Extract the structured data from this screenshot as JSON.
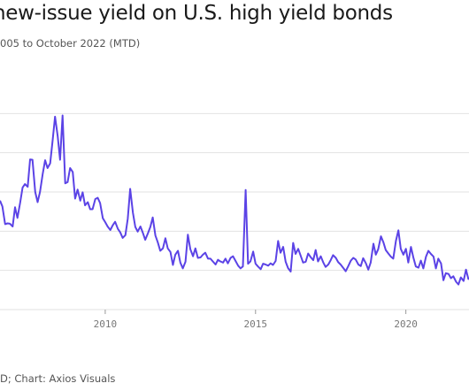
{
  "header": {
    "title": "new-issue yield on U.S. high yield bonds",
    "subtitle": "005 to October 2022 (MTD)"
  },
  "footer": {
    "source": "D; Chart: Axios Visuals"
  },
  "colors": {
    "line": "#5b43e6",
    "grid": "#e2e2e2",
    "axis_text": "#777777"
  },
  "chart_data": {
    "type": "line",
    "title": "new-issue yield on U.S. high yield bonds",
    "xlabel": "",
    "ylabel": "",
    "xlim": [
      2006.5,
      2022.1
    ],
    "ylim": [
      0,
      6
    ],
    "grid": true,
    "x_ticks": [
      {
        "value": 2010,
        "label": "2010"
      },
      {
        "value": 2015,
        "label": "2015"
      },
      {
        "value": 2020,
        "label": "2020"
      }
    ],
    "y_gridlines": [
      0,
      1,
      2,
      3,
      4,
      5
    ],
    "series": [
      {
        "values": [
          [
            2006.5,
            2.78
          ],
          [
            2006.58,
            2.63
          ],
          [
            2006.67,
            2.18
          ],
          [
            2006.75,
            2.2
          ],
          [
            2006.83,
            2.19
          ],
          [
            2006.92,
            2.12
          ],
          [
            2007.0,
            2.61
          ],
          [
            2007.08,
            2.34
          ],
          [
            2007.17,
            2.73
          ],
          [
            2007.25,
            3.11
          ],
          [
            2007.33,
            3.2
          ],
          [
            2007.42,
            3.13
          ],
          [
            2007.5,
            3.83
          ],
          [
            2007.58,
            3.82
          ],
          [
            2007.67,
            3.0
          ],
          [
            2007.75,
            2.74
          ],
          [
            2007.83,
            3.0
          ],
          [
            2007.92,
            3.45
          ],
          [
            2008.0,
            3.81
          ],
          [
            2008.08,
            3.61
          ],
          [
            2008.17,
            3.73
          ],
          [
            2008.25,
            4.32
          ],
          [
            2008.33,
            4.92
          ],
          [
            2008.42,
            4.42
          ],
          [
            2008.5,
            3.82
          ],
          [
            2008.58,
            4.95
          ],
          [
            2008.67,
            3.22
          ],
          [
            2008.75,
            3.25
          ],
          [
            2008.83,
            3.61
          ],
          [
            2008.92,
            3.51
          ],
          [
            2009.0,
            2.83
          ],
          [
            2009.08,
            3.06
          ],
          [
            2009.17,
            2.78
          ],
          [
            2009.25,
            2.99
          ],
          [
            2009.33,
            2.66
          ],
          [
            2009.42,
            2.74
          ],
          [
            2009.5,
            2.56
          ],
          [
            2009.58,
            2.56
          ],
          [
            2009.67,
            2.82
          ],
          [
            2009.75,
            2.85
          ],
          [
            2009.83,
            2.72
          ],
          [
            2009.92,
            2.33
          ],
          [
            2010.0,
            2.23
          ],
          [
            2010.08,
            2.12
          ],
          [
            2010.17,
            2.03
          ],
          [
            2010.25,
            2.15
          ],
          [
            2010.33,
            2.24
          ],
          [
            2010.42,
            2.06
          ],
          [
            2010.5,
            1.97
          ],
          [
            2010.58,
            1.83
          ],
          [
            2010.67,
            1.9
          ],
          [
            2010.75,
            2.32
          ],
          [
            2010.83,
            3.08
          ],
          [
            2010.92,
            2.47
          ],
          [
            2011.0,
            2.11
          ],
          [
            2011.08,
            1.99
          ],
          [
            2011.17,
            2.12
          ],
          [
            2011.25,
            1.96
          ],
          [
            2011.33,
            1.78
          ],
          [
            2011.42,
            1.95
          ],
          [
            2011.5,
            2.11
          ],
          [
            2011.58,
            2.35
          ],
          [
            2011.67,
            1.89
          ],
          [
            2011.75,
            1.71
          ],
          [
            2011.83,
            1.5
          ],
          [
            2011.92,
            1.56
          ],
          [
            2012.0,
            1.82
          ],
          [
            2012.08,
            1.56
          ],
          [
            2012.17,
            1.47
          ],
          [
            2012.25,
            1.14
          ],
          [
            2012.33,
            1.4
          ],
          [
            2012.42,
            1.5
          ],
          [
            2012.5,
            1.2
          ],
          [
            2012.58,
            1.05
          ],
          [
            2012.67,
            1.22
          ],
          [
            2012.75,
            1.91
          ],
          [
            2012.83,
            1.54
          ],
          [
            2012.92,
            1.36
          ],
          [
            2013.0,
            1.56
          ],
          [
            2013.08,
            1.32
          ],
          [
            2013.17,
            1.33
          ],
          [
            2013.25,
            1.4
          ],
          [
            2013.33,
            1.45
          ],
          [
            2013.42,
            1.3
          ],
          [
            2013.5,
            1.3
          ],
          [
            2013.58,
            1.23
          ],
          [
            2013.67,
            1.15
          ],
          [
            2013.75,
            1.27
          ],
          [
            2013.83,
            1.23
          ],
          [
            2013.92,
            1.2
          ],
          [
            2014.0,
            1.3
          ],
          [
            2014.08,
            1.18
          ],
          [
            2014.17,
            1.32
          ],
          [
            2014.25,
            1.36
          ],
          [
            2014.33,
            1.25
          ],
          [
            2014.42,
            1.12
          ],
          [
            2014.5,
            1.05
          ],
          [
            2014.58,
            1.1
          ],
          [
            2014.67,
            3.05
          ],
          [
            2014.75,
            1.17
          ],
          [
            2014.83,
            1.23
          ],
          [
            2014.92,
            1.48
          ],
          [
            2015.0,
            1.17
          ],
          [
            2015.08,
            1.1
          ],
          [
            2015.17,
            1.03
          ],
          [
            2015.25,
            1.17
          ],
          [
            2015.33,
            1.15
          ],
          [
            2015.42,
            1.12
          ],
          [
            2015.5,
            1.18
          ],
          [
            2015.58,
            1.14
          ],
          [
            2015.67,
            1.24
          ],
          [
            2015.75,
            1.75
          ],
          [
            2015.83,
            1.45
          ],
          [
            2015.92,
            1.6
          ],
          [
            2016.0,
            1.22
          ],
          [
            2016.08,
            1.06
          ],
          [
            2016.17,
            0.97
          ],
          [
            2016.25,
            1.7
          ],
          [
            2016.33,
            1.42
          ],
          [
            2016.42,
            1.55
          ],
          [
            2016.5,
            1.38
          ],
          [
            2016.58,
            1.2
          ],
          [
            2016.67,
            1.22
          ],
          [
            2016.75,
            1.43
          ],
          [
            2016.83,
            1.34
          ],
          [
            2016.92,
            1.26
          ],
          [
            2017.0,
            1.52
          ],
          [
            2017.08,
            1.23
          ],
          [
            2017.17,
            1.36
          ],
          [
            2017.25,
            1.21
          ],
          [
            2017.33,
            1.09
          ],
          [
            2017.42,
            1.15
          ],
          [
            2017.5,
            1.26
          ],
          [
            2017.58,
            1.39
          ],
          [
            2017.67,
            1.32
          ],
          [
            2017.75,
            1.21
          ],
          [
            2017.83,
            1.15
          ],
          [
            2017.92,
            1.06
          ],
          [
            2018.0,
            0.98
          ],
          [
            2018.08,
            1.1
          ],
          [
            2018.17,
            1.25
          ],
          [
            2018.25,
            1.32
          ],
          [
            2018.33,
            1.28
          ],
          [
            2018.42,
            1.15
          ],
          [
            2018.5,
            1.11
          ],
          [
            2018.58,
            1.31
          ],
          [
            2018.67,
            1.18
          ],
          [
            2018.75,
            1.02
          ],
          [
            2018.83,
            1.2
          ],
          [
            2018.92,
            1.68
          ],
          [
            2019.0,
            1.4
          ],
          [
            2019.08,
            1.54
          ],
          [
            2019.17,
            1.87
          ],
          [
            2019.25,
            1.72
          ],
          [
            2019.33,
            1.52
          ],
          [
            2019.42,
            1.43
          ],
          [
            2019.5,
            1.35
          ],
          [
            2019.58,
            1.3
          ],
          [
            2019.67,
            1.75
          ],
          [
            2019.75,
            2.02
          ],
          [
            2019.83,
            1.55
          ],
          [
            2019.92,
            1.4
          ],
          [
            2020.0,
            1.55
          ],
          [
            2020.08,
            1.2
          ],
          [
            2020.17,
            1.6
          ],
          [
            2020.25,
            1.33
          ],
          [
            2020.33,
            1.1
          ],
          [
            2020.42,
            1.07
          ],
          [
            2020.5,
            1.25
          ],
          [
            2020.58,
            1.05
          ],
          [
            2020.67,
            1.35
          ],
          [
            2020.75,
            1.5
          ],
          [
            2020.83,
            1.42
          ],
          [
            2020.92,
            1.35
          ],
          [
            2021.0,
            1.05
          ],
          [
            2021.08,
            1.3
          ],
          [
            2021.17,
            1.18
          ],
          [
            2021.25,
            0.75
          ],
          [
            2021.33,
            0.93
          ],
          [
            2021.42,
            0.91
          ],
          [
            2021.5,
            0.8
          ],
          [
            2021.58,
            0.85
          ],
          [
            2021.67,
            0.71
          ],
          [
            2021.75,
            0.64
          ],
          [
            2021.83,
            0.82
          ],
          [
            2021.92,
            0.73
          ],
          [
            2022.0,
            1.02
          ],
          [
            2022.08,
            0.78
          ],
          [
            2022.1,
            0.82
          ]
        ]
      }
    ]
  }
}
